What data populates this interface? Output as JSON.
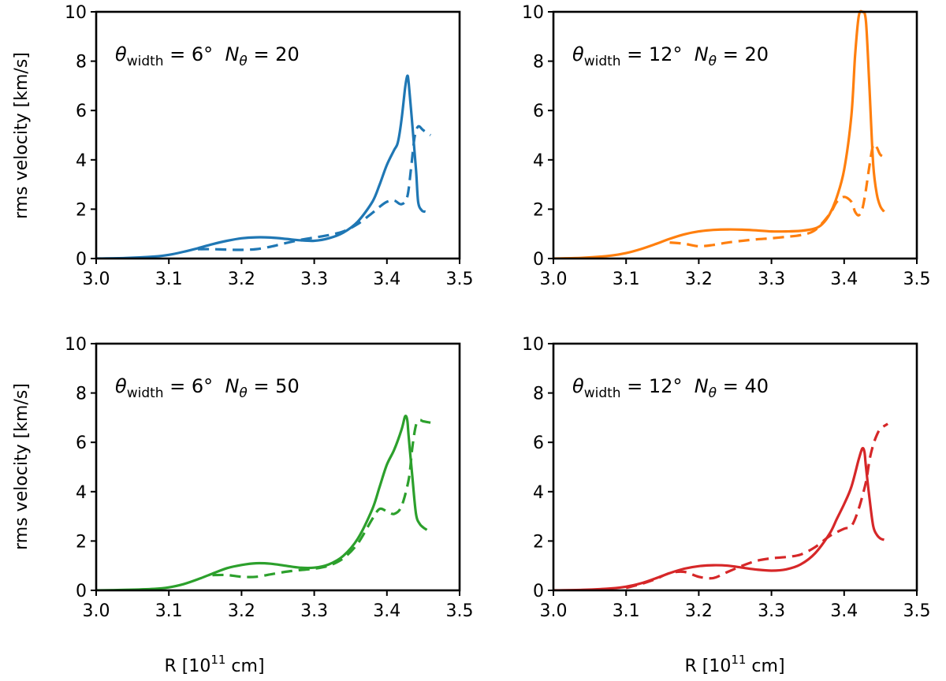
{
  "colors": {
    "blue": "#1f77b4",
    "orange": "#ff7f0e",
    "green": "#2ca02c",
    "red": "#d62728"
  },
  "axes_text": {
    "ylabel": "rms velocity [km/s]",
    "xlabel_prefix": "R [10",
    "xlabel_exp": "11",
    "xlabel_suffix": " cm]"
  },
  "chart_data": [
    {
      "type": "line",
      "title": "",
      "xlim": [
        3.0,
        3.5
      ],
      "ylim": [
        0,
        10
      ],
      "xticks": [
        "3.0",
        "3.1",
        "3.2",
        "3.3",
        "3.4",
        "3.5"
      ],
      "yticks": [
        "0",
        "2",
        "4",
        "6",
        "8",
        "10"
      ],
      "annotation": {
        "theta_label": "θ",
        "theta_sub": "width",
        "theta_value": " = 6°",
        "n_label": "N",
        "n_sub": "θ",
        "n_value": " = 20"
      },
      "color": "#1f77b4",
      "series": [
        {
          "name": "solid",
          "style": "solid",
          "x": [
            3.0,
            3.04,
            3.08,
            3.1,
            3.12,
            3.14,
            3.16,
            3.18,
            3.2,
            3.22,
            3.24,
            3.26,
            3.28,
            3.3,
            3.32,
            3.34,
            3.36,
            3.38,
            3.39,
            3.4,
            3.41,
            3.415,
            3.42,
            3.425,
            3.428,
            3.43,
            3.435,
            3.44,
            3.443,
            3.448,
            3.453
          ],
          "y": [
            0.0,
            0.02,
            0.08,
            0.15,
            0.27,
            0.42,
            0.58,
            0.72,
            0.82,
            0.86,
            0.85,
            0.8,
            0.74,
            0.72,
            0.82,
            1.05,
            1.5,
            2.3,
            3.0,
            3.8,
            4.4,
            4.7,
            5.6,
            6.9,
            7.4,
            7.1,
            5.4,
            3.6,
            2.3,
            1.95,
            1.9
          ]
        },
        {
          "name": "dashed",
          "style": "dashed",
          "x": [
            3.14,
            3.16,
            3.18,
            3.2,
            3.22,
            3.24,
            3.26,
            3.28,
            3.3,
            3.32,
            3.34,
            3.36,
            3.38,
            3.39,
            3.4,
            3.41,
            3.42,
            3.428,
            3.433,
            3.438,
            3.443,
            3.45,
            3.46
          ],
          "y": [
            0.38,
            0.38,
            0.36,
            0.35,
            0.38,
            0.48,
            0.62,
            0.75,
            0.85,
            0.95,
            1.1,
            1.4,
            1.85,
            2.1,
            2.3,
            2.35,
            2.2,
            2.5,
            3.6,
            4.9,
            5.35,
            5.2,
            5.0
          ]
        }
      ]
    },
    {
      "type": "line",
      "title": "",
      "xlim": [
        3.0,
        3.5
      ],
      "ylim": [
        0,
        10
      ],
      "xticks": [
        "3.0",
        "3.1",
        "3.2",
        "3.3",
        "3.4",
        "3.5"
      ],
      "yticks": [
        "0",
        "2",
        "4",
        "6",
        "8",
        "10"
      ],
      "annotation": {
        "theta_label": "θ",
        "theta_sub": "width",
        "theta_value": " = 12°",
        "n_label": "N",
        "n_sub": "θ",
        "n_value": " = 20"
      },
      "color": "#ff7f0e",
      "series": [
        {
          "name": "solid",
          "style": "solid",
          "x": [
            3.0,
            3.04,
            3.08,
            3.1,
            3.12,
            3.14,
            3.16,
            3.18,
            3.2,
            3.22,
            3.24,
            3.26,
            3.28,
            3.3,
            3.32,
            3.34,
            3.36,
            3.37,
            3.38,
            3.39,
            3.4,
            3.41,
            3.415,
            3.42,
            3.425,
            3.43,
            3.435,
            3.44,
            3.445,
            3.45,
            3.455
          ],
          "y": [
            0.0,
            0.03,
            0.12,
            0.22,
            0.38,
            0.58,
            0.8,
            0.98,
            1.1,
            1.16,
            1.18,
            1.17,
            1.14,
            1.1,
            1.1,
            1.12,
            1.22,
            1.4,
            1.8,
            2.5,
            3.6,
            5.8,
            8.2,
            9.8,
            10.0,
            9.6,
            6.8,
            3.8,
            2.6,
            2.1,
            1.9
          ]
        },
        {
          "name": "dashed",
          "style": "dashed",
          "x": [
            3.16,
            3.18,
            3.2,
            3.22,
            3.24,
            3.26,
            3.28,
            3.3,
            3.32,
            3.34,
            3.36,
            3.38,
            3.39,
            3.4,
            3.41,
            3.415,
            3.42,
            3.425,
            3.43,
            3.435,
            3.44,
            3.445,
            3.45,
            3.46
          ],
          "y": [
            0.65,
            0.6,
            0.5,
            0.55,
            0.65,
            0.72,
            0.78,
            0.82,
            0.88,
            0.95,
            1.15,
            1.8,
            2.3,
            2.5,
            2.3,
            1.9,
            1.75,
            2.0,
            2.8,
            3.8,
            4.6,
            4.5,
            4.2,
            4.05
          ]
        }
      ]
    },
    {
      "type": "line",
      "title": "",
      "xlim": [
        3.0,
        3.5
      ],
      "ylim": [
        0,
        10
      ],
      "xticks": [
        "3.0",
        "3.1",
        "3.2",
        "3.3",
        "3.4",
        "3.5"
      ],
      "yticks": [
        "0",
        "2",
        "4",
        "6",
        "8",
        "10"
      ],
      "annotation": {
        "theta_label": "θ",
        "theta_sub": "width",
        "theta_value": " = 6°",
        "n_label": "N",
        "n_sub": "θ",
        "n_value": " = 50"
      },
      "color": "#2ca02c",
      "series": [
        {
          "name": "solid",
          "style": "solid",
          "x": [
            3.0,
            3.04,
            3.08,
            3.1,
            3.12,
            3.14,
            3.16,
            3.18,
            3.2,
            3.22,
            3.24,
            3.26,
            3.28,
            3.3,
            3.32,
            3.34,
            3.36,
            3.38,
            3.39,
            3.4,
            3.41,
            3.42,
            3.425,
            3.428,
            3.43,
            3.435,
            3.44,
            3.445,
            3.45,
            3.455
          ],
          "y": [
            0.0,
            0.02,
            0.06,
            0.12,
            0.25,
            0.45,
            0.68,
            0.9,
            1.03,
            1.1,
            1.08,
            1.0,
            0.92,
            0.92,
            1.05,
            1.4,
            2.1,
            3.3,
            4.2,
            5.1,
            5.7,
            6.5,
            7.05,
            6.9,
            6.2,
            4.6,
            3.1,
            2.7,
            2.55,
            2.45
          ]
        },
        {
          "name": "dashed",
          "style": "dashed",
          "x": [
            3.16,
            3.18,
            3.2,
            3.22,
            3.24,
            3.26,
            3.28,
            3.3,
            3.32,
            3.34,
            3.36,
            3.38,
            3.39,
            3.4,
            3.41,
            3.42,
            3.43,
            3.435,
            3.44,
            3.445,
            3.45,
            3.46
          ],
          "y": [
            0.62,
            0.62,
            0.55,
            0.55,
            0.65,
            0.75,
            0.82,
            0.88,
            1.0,
            1.3,
            1.9,
            2.9,
            3.3,
            3.2,
            3.1,
            3.4,
            4.5,
            5.8,
            6.7,
            6.9,
            6.85,
            6.8
          ]
        }
      ]
    },
    {
      "type": "line",
      "title": "",
      "xlim": [
        3.0,
        3.5
      ],
      "ylim": [
        0,
        10
      ],
      "xticks": [
        "3.0",
        "3.1",
        "3.2",
        "3.3",
        "3.4",
        "3.5"
      ],
      "yticks": [
        "0",
        "2",
        "4",
        "6",
        "8",
        "10"
      ],
      "annotation": {
        "theta_label": "θ",
        "theta_sub": "width",
        "theta_value": " = 12°",
        "n_label": "N",
        "n_sub": "θ",
        "n_value": " = 40"
      },
      "color": "#d62728",
      "series": [
        {
          "name": "solid",
          "style": "solid",
          "x": [
            3.0,
            3.04,
            3.08,
            3.1,
            3.12,
            3.14,
            3.16,
            3.18,
            3.2,
            3.22,
            3.24,
            3.26,
            3.28,
            3.3,
            3.32,
            3.34,
            3.36,
            3.38,
            3.39,
            3.4,
            3.41,
            3.42,
            3.425,
            3.428,
            3.43,
            3.435,
            3.44,
            3.445,
            3.45,
            3.455
          ],
          "y": [
            0.0,
            0.02,
            0.08,
            0.15,
            0.28,
            0.48,
            0.7,
            0.88,
            0.98,
            1.02,
            1.0,
            0.92,
            0.84,
            0.8,
            0.85,
            1.05,
            1.5,
            2.3,
            2.9,
            3.5,
            4.2,
            5.3,
            5.75,
            5.6,
            5.0,
            3.7,
            2.6,
            2.25,
            2.1,
            2.05
          ]
        },
        {
          "name": "dashed",
          "style": "dashed",
          "x": [
            3.1,
            3.12,
            3.14,
            3.16,
            3.18,
            3.2,
            3.22,
            3.24,
            3.26,
            3.28,
            3.3,
            3.32,
            3.34,
            3.36,
            3.38,
            3.4,
            3.41,
            3.42,
            3.43,
            3.435,
            3.44,
            3.445,
            3.45,
            3.46
          ],
          "y": [
            0.1,
            0.25,
            0.45,
            0.7,
            0.75,
            0.55,
            0.5,
            0.75,
            1.0,
            1.2,
            1.3,
            1.35,
            1.45,
            1.75,
            2.2,
            2.5,
            2.6,
            3.3,
            4.4,
            5.3,
            5.9,
            6.3,
            6.55,
            6.75
          ]
        }
      ]
    }
  ]
}
